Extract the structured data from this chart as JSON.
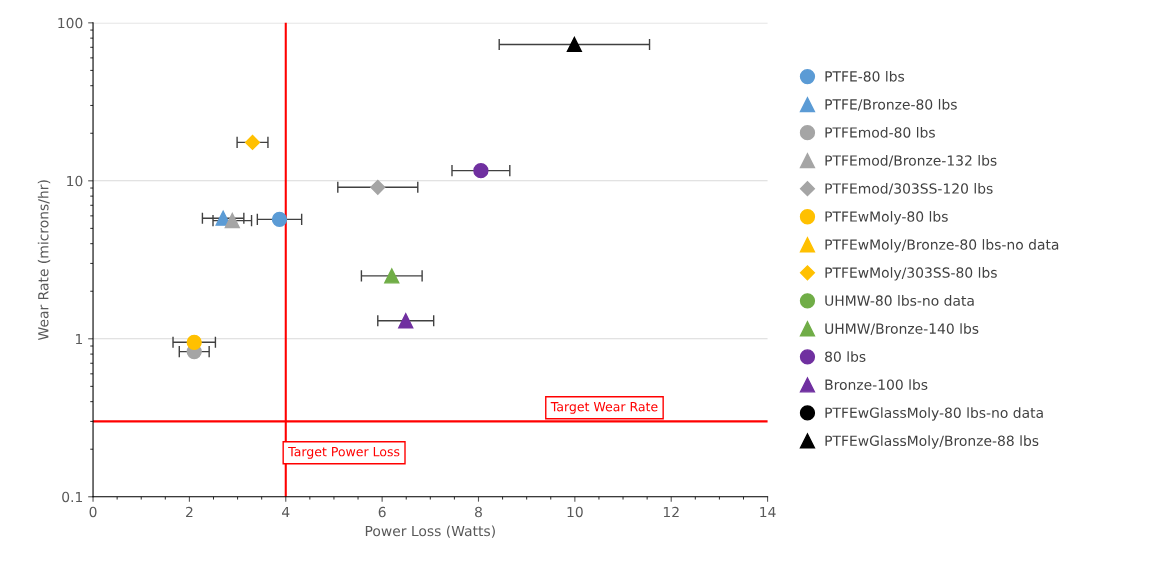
{
  "chart_data": {
    "type": "scatter",
    "xlabel": "Power Loss (Watts)",
    "ylabel": "Wear Rate (microns/hr)",
    "log": "y",
    "xlim": [
      0,
      14
    ],
    "xticks": [
      0,
      2,
      4,
      6,
      8,
      10,
      12,
      14
    ],
    "ylim": [
      0.1,
      100
    ],
    "yticks": [
      0.1,
      1,
      10,
      100
    ],
    "grid": "y",
    "legend": "right",
    "series": [
      {
        "name": "PTFE-80 lbs",
        "color": "#5b9bd5",
        "marker": "circle",
        "x": [
          3.87
        ],
        "values": [
          5.7
        ],
        "xerrors": [
          0.46
        ]
      },
      {
        "name": "PTFE/Bronze-80 lbs",
        "color": "#5b9bd5",
        "marker": "triangle",
        "x": [
          2.7
        ],
        "values": [
          5.8
        ],
        "xerrors": [
          0.43
        ]
      },
      {
        "name": "PTFEmod-80 lbs",
        "color": "#a5a5a5",
        "marker": "circle",
        "x": [
          2.1
        ],
        "values": [
          0.83
        ],
        "xerrors": [
          0.31
        ]
      },
      {
        "name": "PTFEmod/Bronze-132 lbs",
        "color": "#a5a5a5",
        "marker": "triangle",
        "x": [
          2.89
        ],
        "values": [
          5.6
        ],
        "xerrors": [
          0.4
        ]
      },
      {
        "name": "PTFEmod/303SS-120 lbs",
        "color": "#a5a5a5",
        "marker": "diamond",
        "x": [
          5.91
        ],
        "values": [
          9.1
        ],
        "xerrors": [
          0.83
        ]
      },
      {
        "name": "PTFEwMoly-80 lbs",
        "color": "#ffc000",
        "marker": "circle",
        "x": [
          2.1
        ],
        "values": [
          0.95
        ],
        "xerrors": [
          0.44
        ]
      },
      {
        "name": "PTFEwMoly/Bronze-80 lbs-no data",
        "color": "#ffc000",
        "marker": "triangle"
      },
      {
        "name": "PTFEwMoly/303SS-80 lbs",
        "color": "#ffc000",
        "marker": "diamond",
        "x": [
          3.31
        ],
        "values": [
          17.5
        ],
        "xerrors": [
          0.32
        ]
      },
      {
        "name": "UHMW-80 lbs-no data",
        "color": "#70ad47",
        "marker": "circle"
      },
      {
        "name": "UHMW/Bronze-140 lbs",
        "color": "#70ad47",
        "marker": "triangle",
        "x": [
          6.2
        ],
        "values": [
          2.5
        ],
        "xerrors": [
          0.63
        ]
      },
      {
        "name": "80 lbs",
        "color": "#7030a0",
        "marker": "circle",
        "x": [
          8.05
        ],
        "values": [
          11.6
        ],
        "xerrors": [
          0.6
        ]
      },
      {
        "name": "Bronze-100 lbs",
        "color": "#7030a0",
        "marker": "triangle",
        "x": [
          6.49
        ],
        "values": [
          1.3
        ],
        "xerrors": [
          0.58
        ]
      },
      {
        "name": "PTFEwGlassMoly-80 lbs-no data",
        "color": "#000000",
        "marker": "circle"
      },
      {
        "name": "PTFEwGlassMoly/Bronze-88 lbs",
        "color": "#000000",
        "marker": "triangle",
        "x": [
          9.99
        ],
        "values": [
          73
        ],
        "xerrors": [
          1.56
        ]
      }
    ],
    "ref_lines": [
      {
        "axis": "x",
        "value": 4,
        "label": "Target Power Loss",
        "color": "#ff0000"
      },
      {
        "axis": "y",
        "value": 0.3,
        "label": "Target Wear Rate",
        "color": "#ff0000"
      }
    ]
  }
}
